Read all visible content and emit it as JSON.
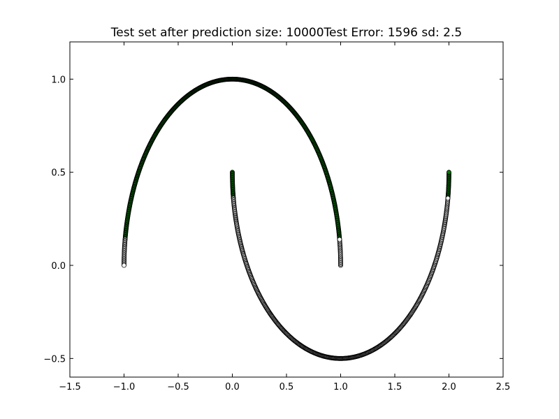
{
  "chart_data": {
    "type": "scatter",
    "title": "Test set after prediction size: 10000Test Error: 1596 sd: 2.5",
    "xlabel": "",
    "ylabel": "",
    "xlim": [
      -1.5,
      2.5
    ],
    "ylim": [
      -0.6,
      1.2
    ],
    "xticks": [
      -1.5,
      -1.0,
      -0.5,
      0.0,
      0.5,
      1.0,
      1.5,
      2.0,
      2.5
    ],
    "xtick_labels": [
      "−1.5",
      "−1.0",
      "−0.5",
      "0.0",
      "0.5",
      "1.0",
      "1.5",
      "2.0",
      "2.5"
    ],
    "yticks": [
      -0.5,
      0.0,
      0.5,
      1.0
    ],
    "ytick_labels": [
      "−0.5",
      "0.0",
      "0.5",
      "1.0"
    ],
    "grid": false,
    "series": [
      {
        "color": "#007a00",
        "points": [
          {
            "angle_start_deg": 0,
            "angle_end_deg": 180,
            "cx": 0,
            "cy": 0,
            "radius": 1,
            "direction": "upper",
            "class": "green",
            "note_range_deg": [
              8,
              172
            ]
          },
          {
            "angle_start_deg": 0,
            "angle_end_deg": 180,
            "cx": 1,
            "cy": 0.5,
            "radius": 1,
            "direction": "lower",
            "class": "green",
            "note_range_deg": [
              0,
              8
            ]
          },
          {
            "angle_start_deg": 0,
            "angle_end_deg": 180,
            "cx": 1,
            "cy": 0.5,
            "radius": 1,
            "direction": "lower",
            "class": "green",
            "note_range_deg": [
              172,
              180
            ]
          }
        ]
      },
      {
        "color": "#ffffff",
        "points": [
          {
            "angle_start_deg": 0,
            "angle_end_deg": 180,
            "cx": 0,
            "cy": 0,
            "radius": 1,
            "direction": "upper",
            "class": "white",
            "note_range_deg": [
              0,
              8
            ]
          },
          {
            "angle_start_deg": 0,
            "angle_end_deg": 180,
            "cx": 0,
            "cy": 0,
            "radius": 1,
            "direction": "upper",
            "class": "white",
            "note_range_deg": [
              172,
              180
            ]
          },
          {
            "angle_start_deg": 0,
            "angle_end_deg": 180,
            "cx": 1,
            "cy": 0.5,
            "radius": 1,
            "direction": "lower",
            "class": "white",
            "note_range_deg": [
              8,
              172
            ]
          }
        ]
      }
    ]
  }
}
